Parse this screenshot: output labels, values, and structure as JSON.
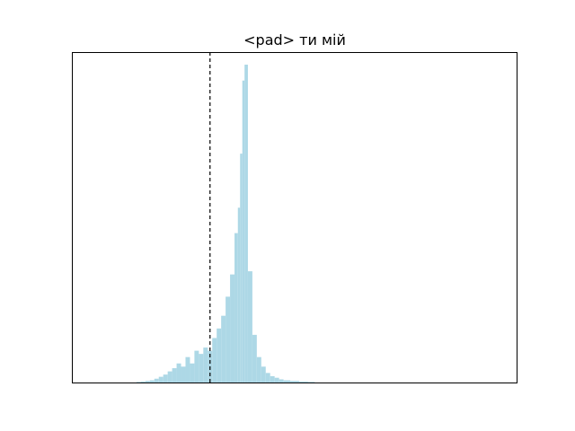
{
  "chart_data": {
    "type": "bar",
    "title": "<pad> ти мій",
    "xlabel": "",
    "ylabel": "",
    "x_ticks_visible": false,
    "y_ticks_visible": false,
    "grid": false,
    "xlim": [
      0,
      1
    ],
    "ylim": [
      0,
      1
    ],
    "bar_color": "#add8e6",
    "threshold": {
      "x": 0.31,
      "style": "dashed",
      "color": "#000000"
    },
    "bin_centers": [
      0.15,
      0.16,
      0.17,
      0.18,
      0.19,
      0.2,
      0.21,
      0.22,
      0.23,
      0.24,
      0.25,
      0.26,
      0.27,
      0.28,
      0.29,
      0.3,
      0.31,
      0.32,
      0.33,
      0.34,
      0.35,
      0.36,
      0.37,
      0.375,
      0.38,
      0.385,
      0.39,
      0.4,
      0.41,
      0.42,
      0.43,
      0.44,
      0.45,
      0.46,
      0.47,
      0.48,
      0.5,
      0.52,
      0.54
    ],
    "values": [
      0.002,
      0.003,
      0.005,
      0.007,
      0.012,
      0.018,
      0.025,
      0.035,
      0.045,
      0.06,
      0.05,
      0.08,
      0.06,
      0.1,
      0.09,
      0.11,
      0.1,
      0.14,
      0.17,
      0.21,
      0.27,
      0.34,
      0.47,
      0.55,
      0.72,
      0.95,
      1.0,
      0.35,
      0.15,
      0.08,
      0.05,
      0.03,
      0.02,
      0.015,
      0.01,
      0.007,
      0.005,
      0.003,
      0.002
    ]
  }
}
